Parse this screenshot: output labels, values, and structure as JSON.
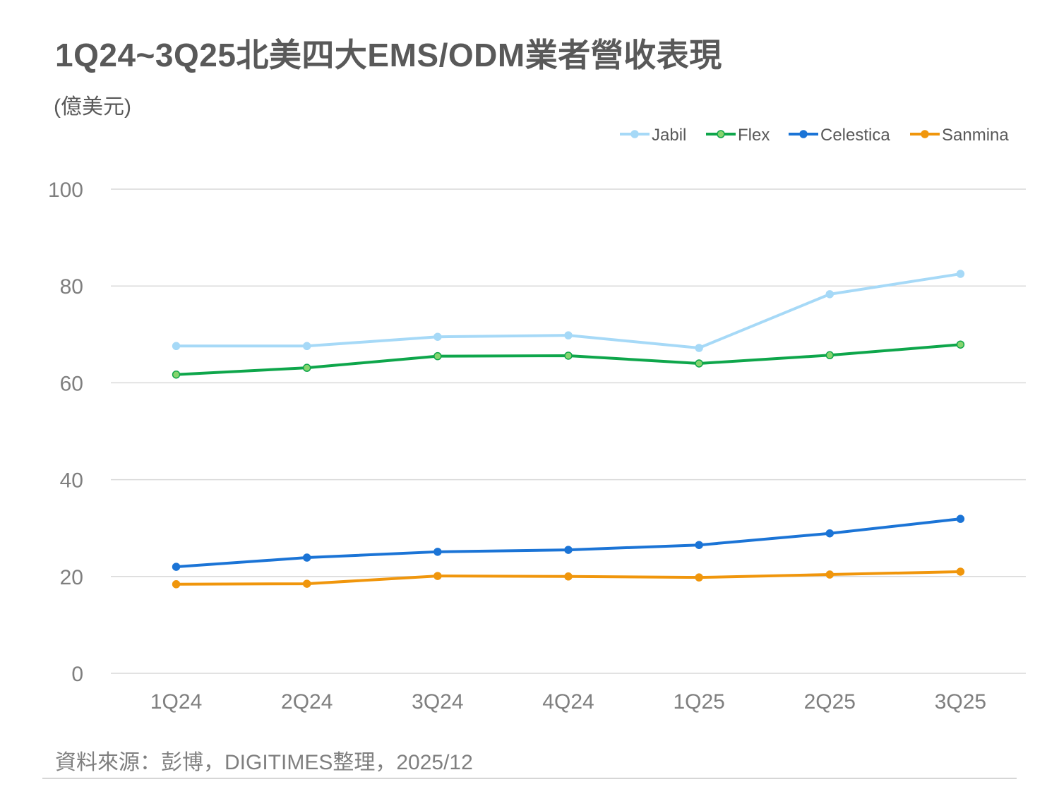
{
  "chart_data": {
    "type": "line",
    "title": "1Q24~3Q25北美四大EMS/ODM業者營收表現",
    "ylabel": "(億美元)",
    "xlabel": "",
    "source": "資料來源：彭博，DIGITIMES整理，2025/12",
    "categories": [
      "1Q24",
      "2Q24",
      "3Q24",
      "4Q24",
      "1Q25",
      "2Q25",
      "3Q25"
    ],
    "ylim": [
      0,
      100
    ],
    "yticks": [
      0,
      20,
      40,
      60,
      80,
      100
    ],
    "grid": true,
    "legend_position": "top-right",
    "series": [
      {
        "name": "Jabil",
        "color": "#a6d9f7",
        "marker_fill": "#a6d9f7",
        "values": [
          67.6,
          67.6,
          69.5,
          69.8,
          67.2,
          78.3,
          82.5
        ]
      },
      {
        "name": "Flex",
        "color": "#0ea64b",
        "marker_fill": "#86d46e",
        "values": [
          61.7,
          63.1,
          65.5,
          65.6,
          64.0,
          65.7,
          67.9
        ]
      },
      {
        "name": "Celestica",
        "color": "#1b74d6",
        "marker_fill": "#1b74d6",
        "values": [
          22.0,
          23.9,
          25.1,
          25.5,
          26.5,
          28.9,
          31.9
        ]
      },
      {
        "name": "Sanmina",
        "color": "#f0960c",
        "marker_fill": "#f0960c",
        "values": [
          18.4,
          18.5,
          20.1,
          20.0,
          19.8,
          20.4,
          21.0
        ]
      }
    ]
  }
}
